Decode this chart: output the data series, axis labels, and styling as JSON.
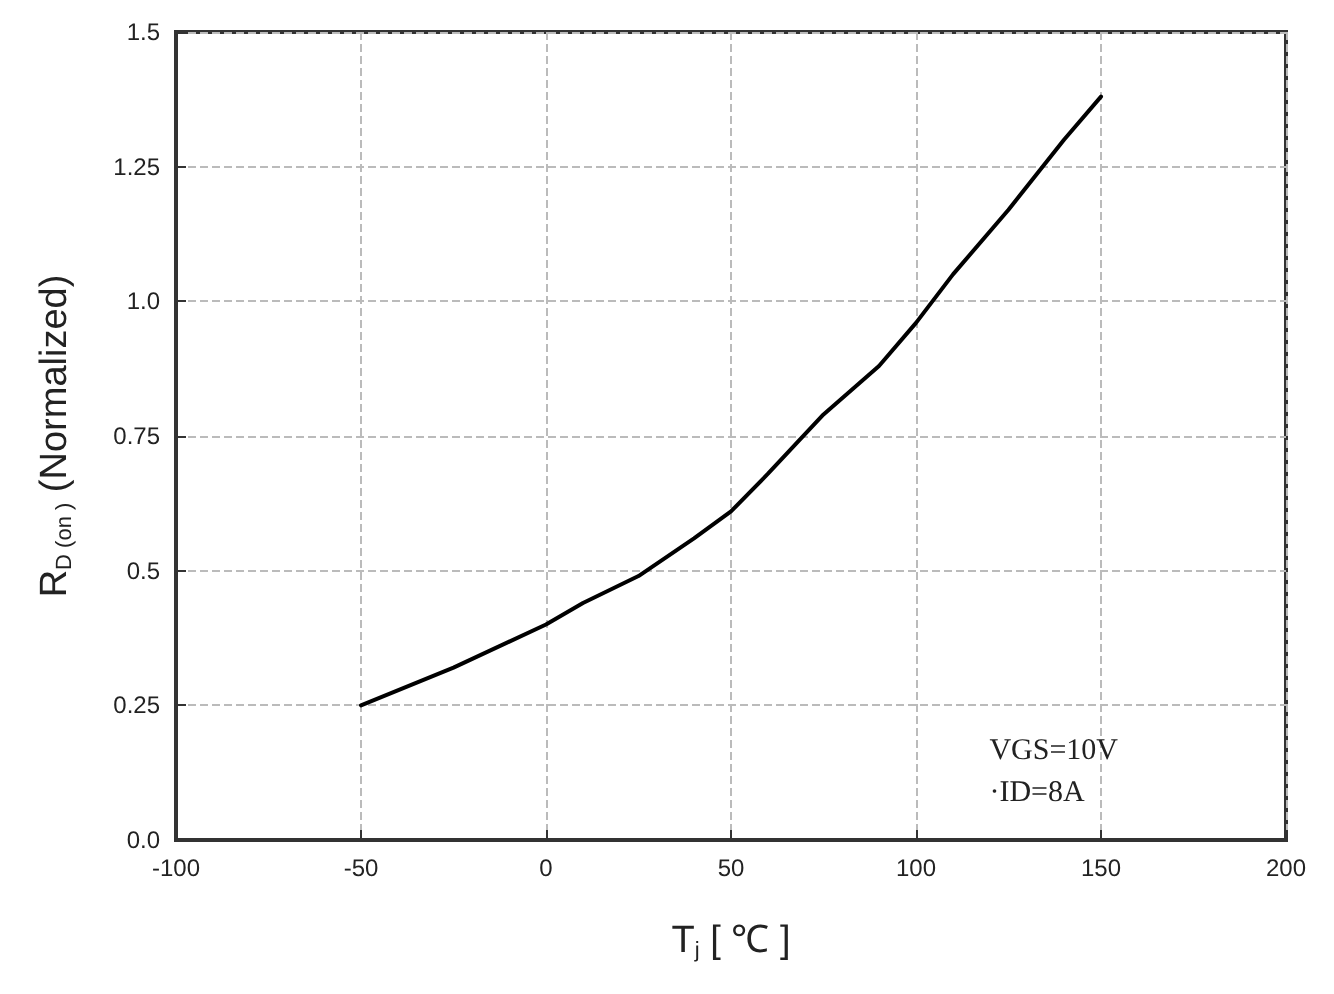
{
  "chart_data": {
    "type": "line",
    "xlabel": "T$_{j}$ [ ℃ ]",
    "ylabel": "R$_{D (on )}$ (Normalized)",
    "annotations": [
      "VGS=10V\n·ID=8A"
    ],
    "x": [
      -50,
      -25,
      0,
      10,
      25,
      40,
      50,
      60,
      75,
      90,
      100,
      110,
      125,
      140,
      150
    ],
    "series": [
      {
        "color": "#000000",
        "values": [
          0.25,
          0.32,
          0.4,
          0.44,
          0.49,
          0.56,
          0.61,
          0.68,
          0.79,
          0.88,
          0.96,
          1.05,
          1.17,
          1.3,
          1.38
        ]
      }
    ],
    "xlim": [
      -100,
      200
    ],
    "xticks": [
      -100,
      -50,
      0,
      50,
      100,
      150,
      200
    ],
    "ylim": [
      0,
      1.5
    ],
    "yticks": [
      {
        "value": 0,
        "label": "0.0"
      },
      0.25,
      0.5,
      0.75,
      {
        "value": 1,
        "label": "1.0"
      },
      1.25,
      1.5
    ],
    "grid": true,
    "marker": "none",
    "line_style": "solid"
  }
}
